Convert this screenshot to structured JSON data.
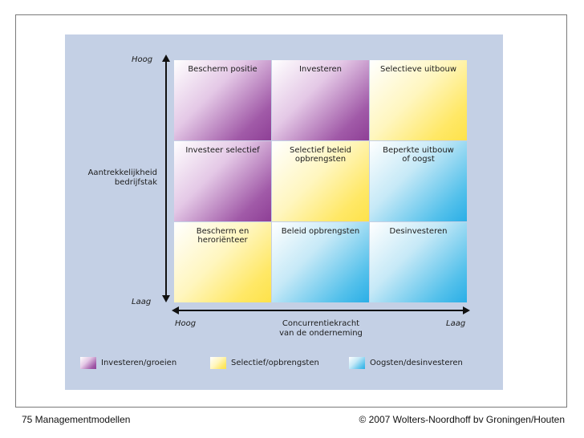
{
  "matrix": {
    "cells": [
      [
        "Bescherm positie",
        "Investeren",
        "Selectieve uitbouw"
      ],
      [
        "Investeer selectief",
        "Selectief beleid\nopbrengsten",
        "Beperkte uitbouw\nof oogst"
      ],
      [
        "Bescherm en\nheroriënteer",
        "Beleid opbrengsten",
        "Desinvesteren"
      ]
    ]
  },
  "y_axis": {
    "high": "Hoog",
    "low": "Laag",
    "label_line1": "Aantrekkelijkheid",
    "label_line2": "bedrijfstak"
  },
  "x_axis": {
    "high": "Hoog",
    "low": "Laag",
    "label_line1": "Concurrentiekracht",
    "label_line2": "van de onderneming"
  },
  "legend": [
    {
      "label": "Investeren/groeien",
      "color": "#9b4da3"
    },
    {
      "label": "Selectief/opbrengsten",
      "color": "#ffe45c"
    },
    {
      "label": "Oogsten/desinvesteren",
      "color": "#2aaee6"
    }
  ],
  "footer": {
    "left": "75 Managementmodellen",
    "right": "© 2007 Wolters-Noordhoff bv Groningen/Houten"
  }
}
